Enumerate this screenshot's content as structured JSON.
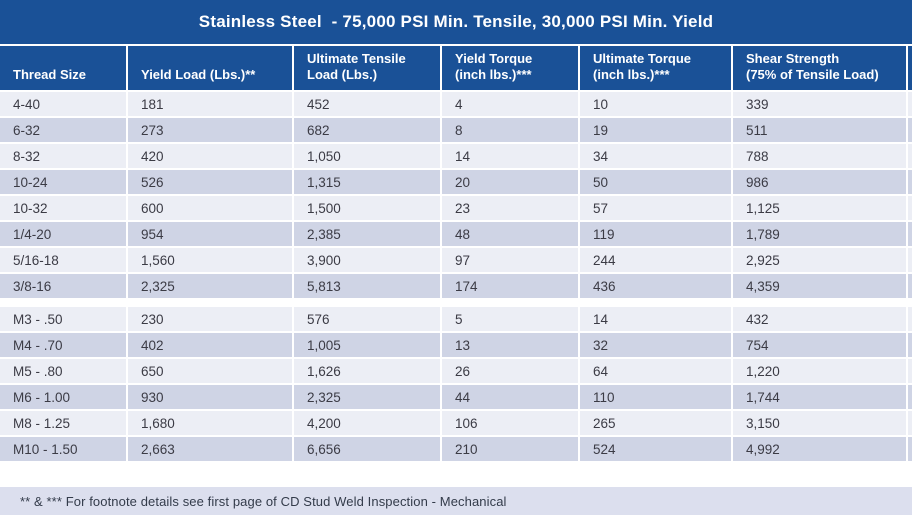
{
  "title": "Stainless Steel  - 75,000 PSI Min. Tensile, 30,000 PSI Min. Yield",
  "table": {
    "headers": [
      "Thread Size",
      "Yield Load (Lbs.)**",
      "Ultimate Tensile\nLoad (Lbs.)",
      "Yield Torque\n(inch lbs.)***",
      "Ultimate Torque\n(inch lbs.)***",
      "Shear Strength\n(75% of Tensile Load)"
    ],
    "groups": [
      {
        "rows": [
          [
            "4-40",
            "181",
            "452",
            "4",
            "10",
            "339"
          ],
          [
            "6-32",
            "273",
            "682",
            "8",
            "19",
            "511"
          ],
          [
            "8-32",
            "420",
            "1,050",
            "14",
            "34",
            "788"
          ],
          [
            "10-24",
            "526",
            "1,315",
            "20",
            "50",
            "986"
          ],
          [
            "10-32",
            "600",
            "1,500",
            "23",
            "57",
            "1,125"
          ],
          [
            "1/4-20",
            "954",
            "2,385",
            "48",
            "119",
            "1,789"
          ],
          [
            "5/16-18",
            "1,560",
            "3,900",
            "97",
            "244",
            "2,925"
          ],
          [
            "3/8-16",
            "2,325",
            "5,813",
            "174",
            "436",
            "4,359"
          ]
        ]
      },
      {
        "rows": [
          [
            "M3 - .50",
            "230",
            "576",
            "5",
            "14",
            "432"
          ],
          [
            "M4 - .70",
            "402",
            "1,005",
            "13",
            "32",
            "754"
          ],
          [
            "M5 - .80",
            "650",
            "1,626",
            "26",
            "64",
            "1,220"
          ],
          [
            "M6 - 1.00",
            "930",
            "2,325",
            "44",
            "110",
            "1,744"
          ],
          [
            "M8 - 1.25",
            "1,680",
            "4,200",
            "106",
            "265",
            "3,150"
          ],
          [
            "M10 - 1.50",
            "2,663",
            "6,656",
            "210",
            "524",
            "4,992"
          ]
        ]
      }
    ]
  },
  "footer": {
    "note": "** & *** For footnote details see first page of CD Stud Weld Inspection - Mechanical"
  },
  "colors": {
    "header_blue": "#1A5197",
    "row_light": "#ECEEF5",
    "row_dark": "#CFD4E5",
    "footer_band": "#DCDFEE",
    "body_text": "#3B3B45",
    "header_text": "#FFFFFF"
  }
}
